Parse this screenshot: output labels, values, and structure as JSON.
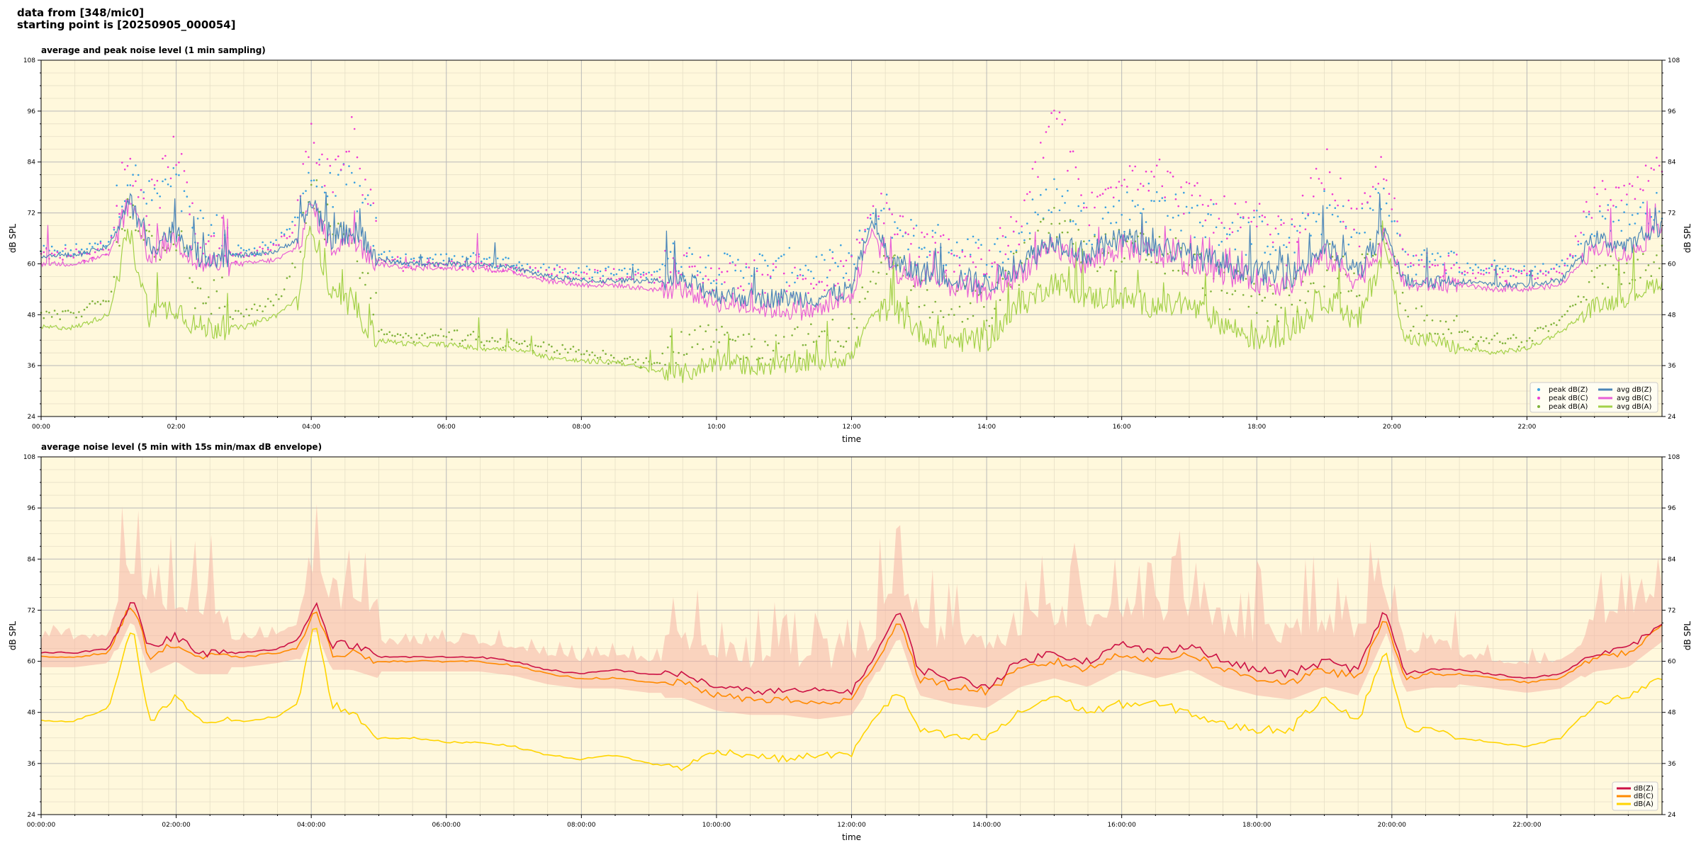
{
  "header": {
    "line1": "data from [348/mic0]",
    "line2": "starting point is [20250905_000054]"
  },
  "colors": {
    "background": "#fff8dc",
    "grid_major": "#b9b9b9",
    "grid_minor": "#e6dfc6",
    "avg_z": "#4a85b8",
    "avg_c": "#e85fd6",
    "avg_a": "#a3d148",
    "peak_z": "#3aa0e0",
    "peak_c": "#ee3bd4",
    "peak_a": "#7fb23a",
    "dbz": "#cc1144",
    "dbc": "#ff8a00",
    "dba": "#ffd400",
    "envelope": "#f5b5a5"
  },
  "chart_data": [
    {
      "type": "line",
      "title": "average and peak noise level (1 min sampling)",
      "xlabel": "time",
      "ylabel": "dB SPL",
      "ylim": [
        24,
        108
      ],
      "yticks": [
        24,
        36,
        48,
        60,
        72,
        84,
        96,
        108
      ],
      "xlim": [
        0,
        24
      ],
      "xticks": [
        0,
        2,
        4,
        6,
        8,
        10,
        12,
        14,
        16,
        18,
        20,
        22
      ],
      "xtick_labels": [
        "00:00",
        "02:00",
        "04:00",
        "06:00",
        "08:00",
        "10:00",
        "12:00",
        "14:00",
        "16:00",
        "18:00",
        "20:00",
        "22:00"
      ],
      "grid": true,
      "legend_position": "bottom-right",
      "x_hours": [
        0,
        0.5,
        1.0,
        1.3,
        1.6,
        2.0,
        2.3,
        2.6,
        3.0,
        3.5,
        3.8,
        4.0,
        4.3,
        4.6,
        5.0,
        5.5,
        6.0,
        6.5,
        7.0,
        7.5,
        8.0,
        8.5,
        9.0,
        9.5,
        10.0,
        10.5,
        11.0,
        11.5,
        12.0,
        12.3,
        12.6,
        13.0,
        13.5,
        14.0,
        14.5,
        15.0,
        15.5,
        16.0,
        16.5,
        17.0,
        17.5,
        18.0,
        18.5,
        19.0,
        19.5,
        19.9,
        20.2,
        20.6,
        21.0,
        21.5,
        22.0,
        22.5,
        23.0,
        23.5,
        24.0
      ],
      "series": [
        {
          "name": "peak dB(Z)",
          "kind": "scatter",
          "color_key": "peak_z",
          "values": [
            62,
            62,
            64,
            77,
            70,
            74,
            62,
            62,
            62,
            64,
            70,
            76,
            72,
            74,
            61,
            60,
            60,
            60,
            59,
            58,
            57,
            57,
            57,
            57,
            55,
            55,
            55,
            55,
            56,
            70,
            65,
            60,
            59,
            56,
            62,
            72,
            64,
            68,
            70,
            66,
            64,
            62,
            60,
            68,
            62,
            74,
            58,
            58,
            58,
            58,
            57,
            58,
            67,
            68,
            70
          ]
        },
        {
          "name": "peak dB(C)",
          "kind": "scatter",
          "color_key": "peak_c",
          "values": [
            61,
            61,
            63,
            80,
            68,
            82,
            61,
            61,
            61,
            63,
            68,
            85,
            74,
            86,
            60,
            59,
            59,
            59,
            58,
            57,
            56,
            56,
            56,
            55,
            53,
            53,
            52,
            52,
            54,
            72,
            66,
            58,
            58,
            55,
            64,
            92,
            66,
            78,
            76,
            70,
            66,
            64,
            60,
            78,
            62,
            80,
            57,
            57,
            57,
            57,
            56,
            57,
            72,
            72,
            80
          ]
        },
        {
          "name": "peak dB(A)",
          "kind": "scatter",
          "color_key": "peak_a",
          "values": [
            47,
            47,
            50,
            70,
            60,
            62,
            47,
            47,
            47,
            50,
            60,
            72,
            62,
            60,
            43,
            42,
            42,
            41,
            40,
            39,
            38,
            37,
            36,
            36,
            38,
            37,
            37,
            38,
            40,
            56,
            54,
            48,
            46,
            44,
            55,
            65,
            58,
            58,
            58,
            55,
            50,
            46,
            46,
            55,
            50,
            66,
            44,
            43,
            42,
            41,
            41,
            46,
            54,
            54,
            58
          ]
        },
        {
          "name": "avg dB(Z)",
          "kind": "line",
          "color_key": "avg_z",
          "values": [
            62,
            62,
            64,
            75,
            64,
            68,
            62,
            62,
            62,
            63,
            66,
            75,
            66,
            68,
            61,
            60,
            60,
            60,
            59,
            57,
            56,
            56,
            56,
            56,
            53,
            52,
            52,
            52,
            54,
            70,
            60,
            58,
            57,
            55,
            60,
            66,
            62,
            66,
            64,
            62,
            60,
            58,
            57,
            64,
            58,
            68,
            56,
            56,
            56,
            55,
            55,
            56,
            66,
            64,
            69
          ]
        },
        {
          "name": "avg dB(C)",
          "kind": "line",
          "color_key": "avg_c",
          "values": [
            60,
            60,
            62,
            74,
            62,
            66,
            60,
            60,
            60,
            61,
            64,
            74,
            64,
            66,
            60,
            59,
            59,
            59,
            58,
            56,
            55,
            55,
            54,
            54,
            51,
            50,
            49,
            49,
            52,
            68,
            58,
            56,
            55,
            53,
            58,
            64,
            60,
            64,
            62,
            60,
            58,
            56,
            55,
            62,
            56,
            66,
            55,
            55,
            55,
            54,
            54,
            55,
            64,
            62,
            68
          ]
        },
        {
          "name": "avg dB(A)",
          "kind": "line",
          "color_key": "avg_a",
          "values": [
            45,
            45,
            48,
            68,
            48,
            50,
            45,
            45,
            45,
            48,
            52,
            70,
            52,
            50,
            42,
            41,
            41,
            40,
            40,
            38,
            37,
            37,
            35,
            34,
            37,
            36,
            36,
            37,
            38,
            48,
            50,
            44,
            42,
            42,
            50,
            56,
            52,
            52,
            50,
            50,
            46,
            42,
            44,
            52,
            46,
            64,
            42,
            42,
            40,
            39,
            40,
            44,
            50,
            52,
            56
          ]
        }
      ]
    },
    {
      "type": "line",
      "title": "average noise level (5 min with 15s min/max dB envelope)",
      "xlabel": "time",
      "ylabel": "dB SPL",
      "ylim": [
        24,
        108
      ],
      "yticks": [
        24,
        36,
        48,
        60,
        72,
        84,
        96,
        108
      ],
      "xlim": [
        0,
        24
      ],
      "xticks": [
        0,
        2,
        4,
        6,
        8,
        10,
        12,
        14,
        16,
        18,
        20,
        22
      ],
      "xtick_labels": [
        "00:00:00",
        "02:00:00",
        "04:00:00",
        "06:00:00",
        "08:00:00",
        "10:00:00",
        "12:00:00",
        "14:00:00",
        "16:00:00",
        "18:00:00",
        "20:00:00",
        "22:00:00"
      ],
      "grid": true,
      "legend_position": "bottom-right",
      "x_hours": [
        0,
        0.5,
        1.0,
        1.35,
        1.6,
        2.0,
        2.3,
        2.6,
        3.0,
        3.5,
        3.8,
        4.05,
        4.3,
        4.6,
        5.0,
        5.5,
        6.0,
        6.5,
        7.0,
        7.5,
        8.0,
        8.5,
        9.0,
        9.5,
        10.0,
        10.5,
        11.0,
        11.5,
        12.0,
        12.3,
        12.7,
        13.0,
        13.5,
        14.0,
        14.5,
        15.0,
        15.5,
        16.0,
        16.5,
        17.0,
        17.5,
        18.0,
        18.5,
        19.0,
        19.5,
        19.9,
        20.2,
        20.6,
        21.0,
        21.5,
        22.0,
        22.5,
        23.0,
        23.5,
        24.0
      ],
      "series": [
        {
          "name": "dB(Z)",
          "color_key": "dbz",
          "values": [
            62,
            62,
            63,
            75,
            63,
            66,
            62,
            62,
            62,
            63,
            65,
            74,
            64,
            64,
            61,
            61,
            61,
            61,
            60,
            58,
            57,
            58,
            57,
            57,
            54,
            53,
            53,
            53,
            53,
            60,
            72,
            58,
            56,
            54,
            60,
            62,
            60,
            64,
            62,
            64,
            60,
            58,
            57,
            60,
            58,
            72,
            57,
            58,
            58,
            57,
            56,
            57,
            62,
            63,
            69
          ]
        },
        {
          "name": "dB(C)",
          "color_key": "dbc",
          "values": [
            61,
            61,
            62,
            74,
            61,
            64,
            61,
            61,
            61,
            62,
            63,
            72,
            62,
            62,
            60,
            60,
            60,
            60,
            59,
            57,
            56,
            56,
            55,
            55,
            52,
            51,
            51,
            50,
            51,
            58,
            70,
            56,
            54,
            53,
            58,
            60,
            58,
            62,
            60,
            62,
            58,
            56,
            55,
            58,
            56,
            70,
            56,
            57,
            57,
            56,
            55,
            56,
            61,
            62,
            68
          ]
        },
        {
          "name": "dB(A)",
          "color_key": "dba",
          "values": [
            46,
            46,
            49,
            69,
            45,
            52,
            46,
            46,
            46,
            47,
            50,
            70,
            50,
            48,
            42,
            42,
            41,
            41,
            40,
            38,
            37,
            38,
            36,
            35,
            39,
            38,
            37,
            38,
            38,
            46,
            53,
            44,
            42,
            42,
            48,
            52,
            48,
            50,
            50,
            48,
            45,
            44,
            44,
            52,
            46,
            63,
            44,
            44,
            42,
            41,
            40,
            42,
            50,
            52,
            56
          ]
        }
      ]
    }
  ]
}
